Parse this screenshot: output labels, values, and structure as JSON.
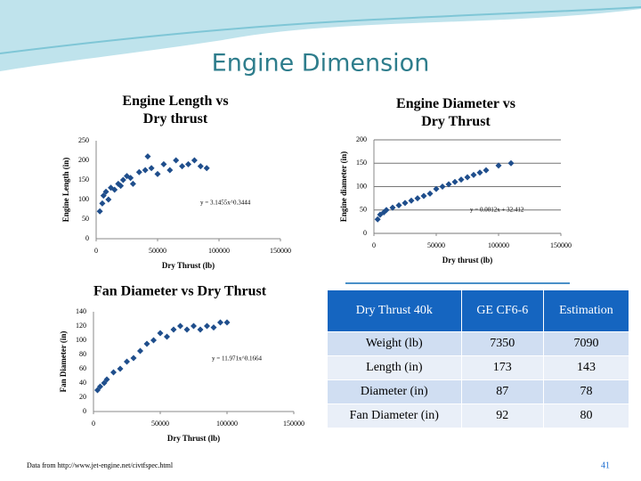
{
  "title": "Engine Dimension",
  "chart_data": [
    {
      "type": "scatter",
      "title": "Engine Length vs Dry thrust",
      "x_label": "Dry Thrust (lb)",
      "y_label": "Engine Length (in)",
      "annotation": "y = 3.1455x^0.3444",
      "color": "#1f4e8c",
      "x": [
        3000,
        5000,
        6000,
        8000,
        10000,
        12000,
        15000,
        18000,
        20000,
        22000,
        25000,
        28000,
        30000,
        35000,
        40000,
        42000,
        45000,
        50000,
        55000,
        60000,
        65000,
        70000,
        75000,
        80000,
        85000,
        90000
      ],
      "values": [
        70,
        90,
        110,
        120,
        100,
        130,
        125,
        140,
        135,
        150,
        160,
        155,
        140,
        170,
        175,
        210,
        180,
        165,
        190,
        175,
        200,
        185,
        190,
        200,
        185,
        180
      ],
      "xlim": [
        0,
        150000
      ],
      "xticks": [
        0,
        50000,
        100000,
        150000
      ],
      "ylim": [
        0,
        250
      ],
      "yticks": [
        0,
        50,
        100,
        150,
        200,
        250
      ]
    },
    {
      "type": "scatter",
      "title": "Engine Diameter vs Dry Thrust",
      "x_label": "Dry thrust (lb)",
      "y_label": "Engine diameter (in)",
      "annotation": "y = 0.0012x + 32.412",
      "color": "#1f4e8c",
      "x": [
        3000,
        5000,
        8000,
        10000,
        15000,
        20000,
        25000,
        30000,
        35000,
        40000,
        45000,
        50000,
        55000,
        60000,
        65000,
        70000,
        75000,
        80000,
        85000,
        90000,
        100000,
        110000
      ],
      "values": [
        30,
        40,
        45,
        50,
        55,
        60,
        65,
        70,
        75,
        80,
        85,
        95,
        100,
        105,
        110,
        115,
        120,
        125,
        130,
        135,
        145,
        150
      ],
      "xlim": [
        0,
        150000
      ],
      "xticks": [
        0,
        50000,
        100000,
        150000
      ],
      "ylim": [
        0,
        200
      ],
      "yticks": [
        0,
        50,
        100,
        150,
        200
      ],
      "grid": true
    },
    {
      "type": "scatter",
      "title": "Fan Diameter vs Dry Thrust",
      "x_label": "Dry Thrust (lb)",
      "y_label": "Fan Diameter (in)",
      "annotation": "y = 11.971x^0.1664",
      "color": "#1f4e8c",
      "x": [
        3000,
        5000,
        8000,
        10000,
        15000,
        20000,
        25000,
        30000,
        35000,
        40000,
        45000,
        50000,
        55000,
        60000,
        65000,
        70000,
        75000,
        80000,
        85000,
        90000,
        95000,
        100000
      ],
      "values": [
        30,
        35,
        40,
        45,
        55,
        60,
        70,
        75,
        85,
        95,
        100,
        110,
        105,
        115,
        120,
        115,
        120,
        115,
        120,
        118,
        125,
        125
      ],
      "xlim": [
        0,
        150000
      ],
      "xticks": [
        0,
        50000,
        100000,
        150000
      ],
      "ylim": [
        0,
        140
      ],
      "yticks": [
        0,
        20,
        40,
        60,
        80,
        100,
        120,
        140
      ]
    }
  ],
  "table": {
    "header": [
      "Dry Thrust 40k",
      "GE CF6-6",
      "Estimation"
    ],
    "rows": [
      [
        "Weight (lb)",
        7350,
        7090
      ],
      [
        "Length (in)",
        173,
        143
      ],
      [
        "Diameter (in)",
        87,
        78
      ],
      [
        "Fan Diameter (in)",
        92,
        80
      ]
    ]
  },
  "footer": {
    "source": "Data from http://www.jet-engine.net/civtfspec.html",
    "page": "41"
  }
}
